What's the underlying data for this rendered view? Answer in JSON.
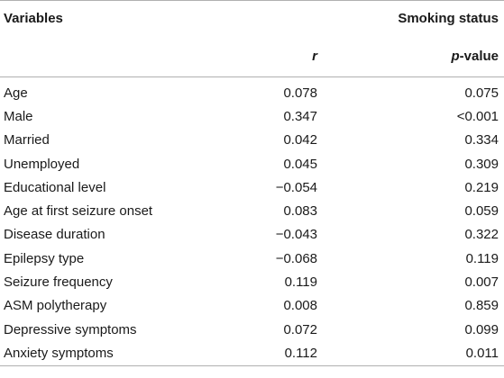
{
  "table": {
    "header": {
      "variables": "Variables",
      "group": "Smoking status",
      "r": "r",
      "p_italic": "p",
      "p_suffix": "-value"
    },
    "rows": [
      {
        "variable": "Age",
        "r": "0.078",
        "p": "0.075"
      },
      {
        "variable": "Male",
        "r": "0.347",
        "p": "<0.001"
      },
      {
        "variable": "Married",
        "r": "0.042",
        "p": "0.334"
      },
      {
        "variable": "Unemployed",
        "r": "0.045",
        "p": "0.309"
      },
      {
        "variable": "Educational level",
        "r": "−0.054",
        "p": "0.219"
      },
      {
        "variable": "Age at first seizure onset",
        "r": "0.083",
        "p": "0.059"
      },
      {
        "variable": "Disease duration",
        "r": "−0.043",
        "p": "0.322"
      },
      {
        "variable": "Epilepsy type",
        "r": "−0.068",
        "p": "0.119"
      },
      {
        "variable": "Seizure frequency",
        "r": "0.119",
        "p": "0.007"
      },
      {
        "variable": "ASM polytherapy",
        "r": "0.008",
        "p": "0.859"
      },
      {
        "variable": "Depressive symptoms",
        "r": "0.072",
        "p": "0.099"
      },
      {
        "variable": "Anxiety symptoms",
        "r": "0.112",
        "p": "0.011"
      }
    ]
  }
}
